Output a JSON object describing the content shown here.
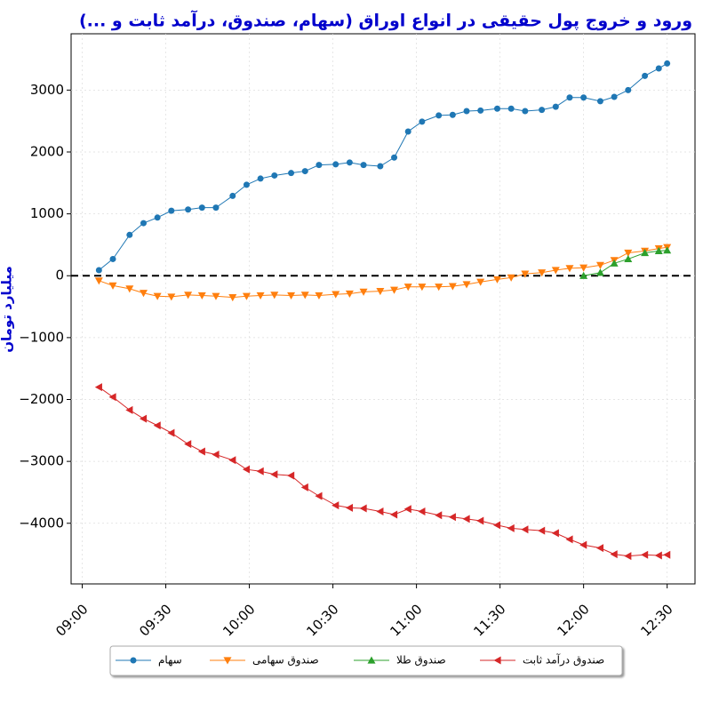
{
  "chart_data": {
    "type": "line",
    "title": "ورود و خروج پول حقیقی در انواع اوراق (سهام، صندوق، درآمد ثابت و ...)",
    "y_label": "میلیارد تومان",
    "x": [
      "09:06",
      "09:11",
      "09:17",
      "09:22",
      "09:27",
      "09:32",
      "09:38",
      "09:43",
      "09:48",
      "09:54",
      "09:59",
      "10:04",
      "10:09",
      "10:15",
      "10:20",
      "10:25",
      "10:31",
      "10:36",
      "10:41",
      "10:47",
      "10:52",
      "10:57",
      "11:02",
      "11:08",
      "11:13",
      "11:18",
      "11:23",
      "11:29",
      "11:34",
      "11:39",
      "11:45",
      "11:50",
      "11:55",
      "12:00",
      "12:06",
      "12:11",
      "12:16",
      "12:22",
      "12:27",
      "12:30"
    ],
    "series": [
      {
        "name": "سهام",
        "color": "#1f77b4",
        "marker": "circle",
        "values": [
          90,
          270,
          660,
          850,
          940,
          1050,
          1070,
          1100,
          1100,
          1290,
          1470,
          1570,
          1620,
          1660,
          1690,
          1790,
          1800,
          1830,
          1790,
          1770,
          1910,
          2330,
          2490,
          2590,
          2600,
          2660,
          2670,
          2700,
          2700,
          2660,
          2680,
          2730,
          2880,
          2880,
          2820,
          2890,
          3000,
          3230,
          3350,
          3430
        ]
      },
      {
        "name": "صندوق سهامی",
        "color": "#ff7f0e",
        "marker": "triangle-down",
        "values": [
          -80,
          -160,
          -210,
          -280,
          -330,
          -340,
          -310,
          -320,
          -330,
          -350,
          -330,
          -320,
          -310,
          -320,
          -310,
          -320,
          -300,
          -290,
          -260,
          -250,
          -230,
          -180,
          -180,
          -180,
          -170,
          -140,
          -100,
          -60,
          -30,
          30,
          50,
          90,
          120,
          130,
          170,
          250,
          370,
          400,
          440,
          460
        ]
      },
      {
        "name": "صندوق طلا",
        "color": "#2ca02c",
        "marker": "triangle-up",
        "values": [
          null,
          null,
          null,
          null,
          null,
          null,
          null,
          null,
          null,
          null,
          null,
          null,
          null,
          null,
          null,
          null,
          null,
          null,
          null,
          null,
          null,
          null,
          null,
          null,
          null,
          null,
          null,
          null,
          null,
          null,
          null,
          null,
          null,
          0,
          50,
          200,
          270,
          370,
          400,
          410
        ]
      },
      {
        "name": "صندوق درآمد ثابت",
        "color": "#d62728",
        "marker": "triangle-left",
        "values": [
          -1800,
          -1960,
          -2170,
          -2310,
          -2420,
          -2540,
          -2720,
          -2840,
          -2890,
          -2980,
          -3130,
          -3160,
          -3210,
          -3230,
          -3420,
          -3560,
          -3710,
          -3750,
          -3760,
          -3810,
          -3860,
          -3770,
          -3810,
          -3870,
          -3900,
          -3930,
          -3960,
          -4030,
          -4080,
          -4100,
          -4120,
          -4160,
          -4260,
          -4350,
          -4400,
          -4500,
          -4530,
          -4510,
          -4520,
          -4510
        ]
      }
    ],
    "xlim": [
      "08:56",
      "12:40"
    ],
    "xticks": [
      "09:00",
      "09:30",
      "10:00",
      "10:30",
      "11:00",
      "11:30",
      "12:00",
      "12:30"
    ],
    "ylim": [
      -4980,
      3910
    ],
    "yticks": [
      {
        "value": -4000,
        "label": "−4000"
      },
      {
        "value": -3000,
        "label": "−3000"
      },
      {
        "value": -2000,
        "label": "−2000"
      },
      {
        "value": -1000,
        "label": "−1000"
      },
      0,
      1000,
      2000,
      3000
    ],
    "hline": 0,
    "grid": true,
    "legend": "bottom"
  }
}
